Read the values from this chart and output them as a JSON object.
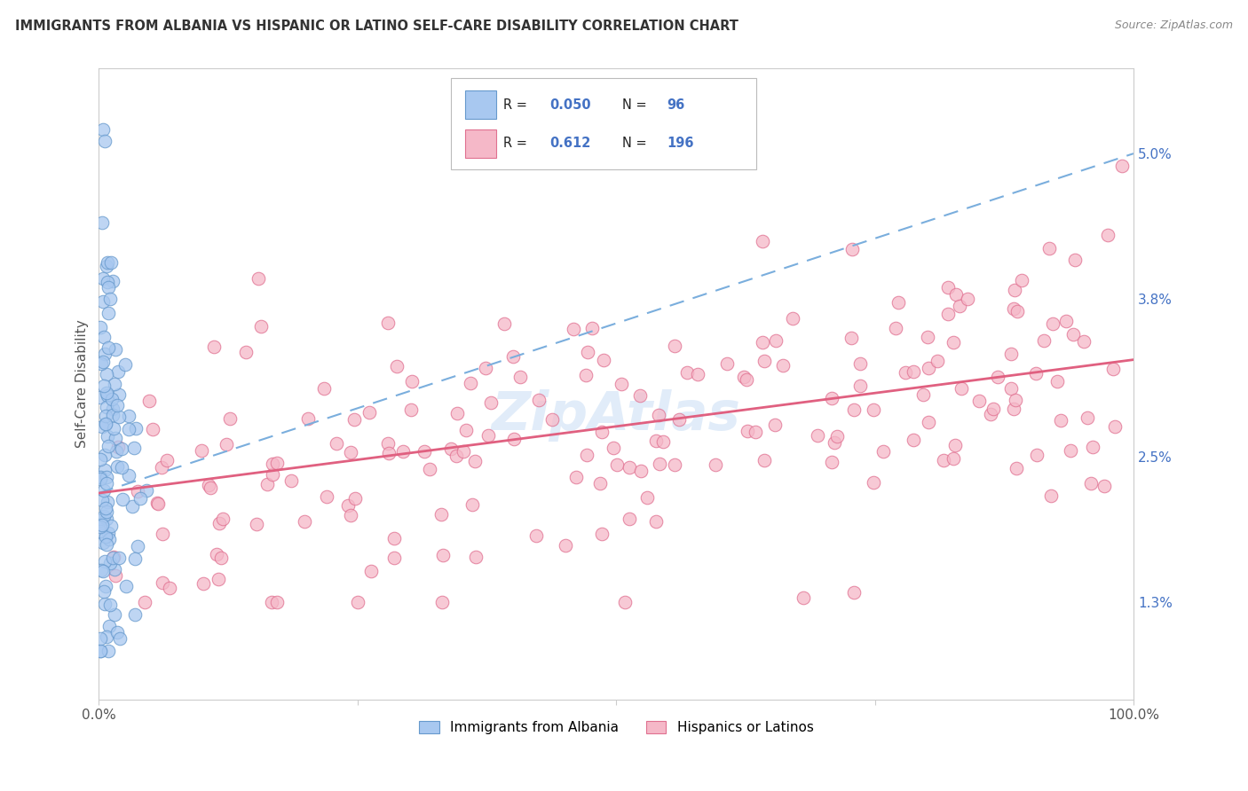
{
  "title": "IMMIGRANTS FROM ALBANIA VS HISPANIC OR LATINO SELF-CARE DISABILITY CORRELATION CHART",
  "source": "Source: ZipAtlas.com",
  "ylabel": "Self-Care Disability",
  "ytick_labels": [
    "1.3%",
    "2.5%",
    "3.8%",
    "5.0%"
  ],
  "ytick_values": [
    0.013,
    0.025,
    0.038,
    0.05
  ],
  "xlim": [
    0.0,
    1.0
  ],
  "ylim": [
    0.005,
    0.057
  ],
  "blue_R": 0.05,
  "blue_N": 96,
  "pink_R": 0.612,
  "pink_N": 196,
  "blue_color": "#a8c8f0",
  "pink_color": "#f5b8c8",
  "blue_edge_color": "#6699cc",
  "pink_edge_color": "#e07090",
  "blue_line_color": "#7aaedd",
  "pink_line_color": "#e06080",
  "legend_label_1": "Immigrants from Albania",
  "legend_label_2": "Hispanics or Latinos",
  "watermark": "ZipAtlas",
  "background_color": "#ffffff",
  "grid_color": "#cccccc",
  "title_color": "#333333",
  "source_color": "#888888",
  "tick_label_color": "#4472c4",
  "legend_text_color": "#4472c4"
}
